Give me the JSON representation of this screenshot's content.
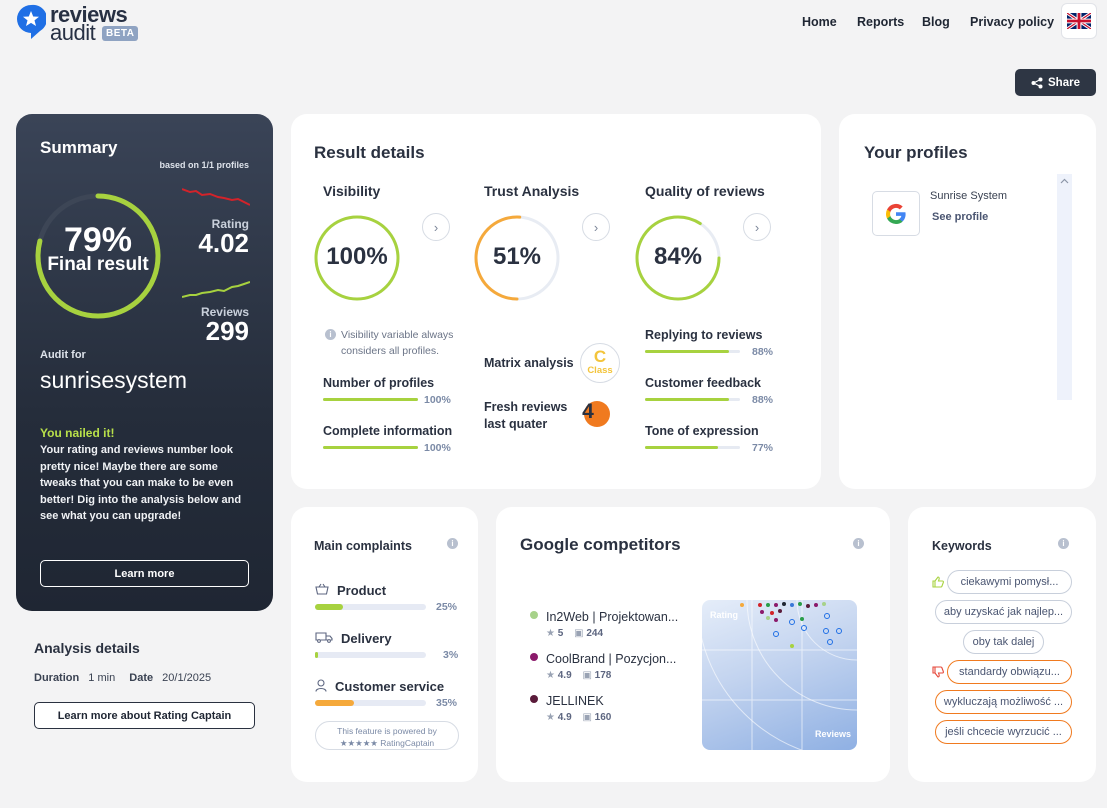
{
  "header": {
    "logo": {
      "word1": "reviews",
      "word2": "audit",
      "badge": "BETA"
    },
    "nav": [
      "Home",
      "Reports",
      "Blog",
      "Privacy policy"
    ],
    "language_flag": "uk-flag-icon",
    "share_label": "Share"
  },
  "summary": {
    "title": "Summary",
    "based_on": "based on 1/1 profiles",
    "final_percent": "79%",
    "final_label": "Final result",
    "final_value": 0.79,
    "rating_label": "Rating",
    "rating_value": "4.02",
    "reviews_label": "Reviews",
    "reviews_value": "299",
    "audit_for_label": "Audit for",
    "audit_name": "sunrisesystem",
    "headline": "You nailed it!",
    "message": "Your rating and reviews number look pretty nice! Maybe there are some tweaks that you can make to be even better! Dig into the analysis below and see what you can upgrade!",
    "learn_more": "Learn more"
  },
  "analysis_details": {
    "title": "Analysis details",
    "duration_label": "Duration",
    "duration_value": "1 min",
    "date_label": "Date",
    "date_value": "20/1/2025",
    "button": "Learn more about Rating Captain"
  },
  "result_details": {
    "title": "Result details",
    "visibility": {
      "title": "Visibility",
      "value": "100%",
      "fraction": 1.0,
      "note": "Visibility variable always considers all profiles.",
      "metrics": [
        {
          "label": "Number of profiles",
          "pct": "100%",
          "fraction": 1.0
        },
        {
          "label": "Complete information",
          "pct": "100%",
          "fraction": 1.0
        }
      ]
    },
    "trust": {
      "title": "Trust Analysis",
      "value": "51%",
      "fraction": 0.51,
      "matrix_label": "Matrix analysis",
      "matrix_class": "C",
      "matrix_class_word": "Class",
      "fresh_label_1": "Fresh reviews",
      "fresh_label_2": "last quater",
      "fresh_value": "4"
    },
    "quality": {
      "title": "Quality of reviews",
      "value": "84%",
      "fraction": 0.84,
      "metrics": [
        {
          "label": "Replying to reviews",
          "pct": "88%",
          "fraction": 0.88
        },
        {
          "label": "Customer feedback",
          "pct": "88%",
          "fraction": 0.88
        },
        {
          "label": "Tone of expression",
          "pct": "77%",
          "fraction": 0.77
        }
      ]
    }
  },
  "profiles": {
    "title": "Your profiles",
    "items": [
      {
        "name": "Sunrise System",
        "link": "See profile",
        "icon": "google-icon"
      }
    ]
  },
  "complaints": {
    "title": "Main complaints",
    "items": [
      {
        "label": "Product",
        "pct": "25%",
        "fraction": 0.25,
        "icon": "basket-icon",
        "color": "#a7d23f"
      },
      {
        "label": "Delivery",
        "pct": "3%",
        "fraction": 0.03,
        "icon": "truck-icon",
        "color": "#a7d23f"
      },
      {
        "label": "Customer service",
        "pct": "35%",
        "fraction": 0.35,
        "icon": "user-icon",
        "color": "#f5a93b"
      }
    ],
    "powered_line1": "This feature is powered by",
    "powered_line2": "★★★★★ RatingCaptain"
  },
  "competitors": {
    "title": "Google competitors",
    "items": [
      {
        "name": "In2Web | Projektowan...",
        "rating": "5",
        "reviews": "244",
        "color": "#a7d28a"
      },
      {
        "name": "CoolBrand | Pozycjon...",
        "rating": "4.9",
        "reviews": "178",
        "color": "#8b1a6b"
      },
      {
        "name": "JELLINEK",
        "rating": "4.9",
        "reviews": "160",
        "color": "#5a1b3a"
      }
    ],
    "map_y_label": "Rating",
    "map_x_label": "Reviews"
  },
  "keywords": {
    "title": "Keywords",
    "positive": [
      "ciekawymi pomysł...",
      "aby uzyskać jak najlep...",
      "oby tak dalej"
    ],
    "negative": [
      "standardy obwiązu...",
      "wykluczają możliwość ...",
      "jeśli chcecie wyrzucić ..."
    ]
  }
}
